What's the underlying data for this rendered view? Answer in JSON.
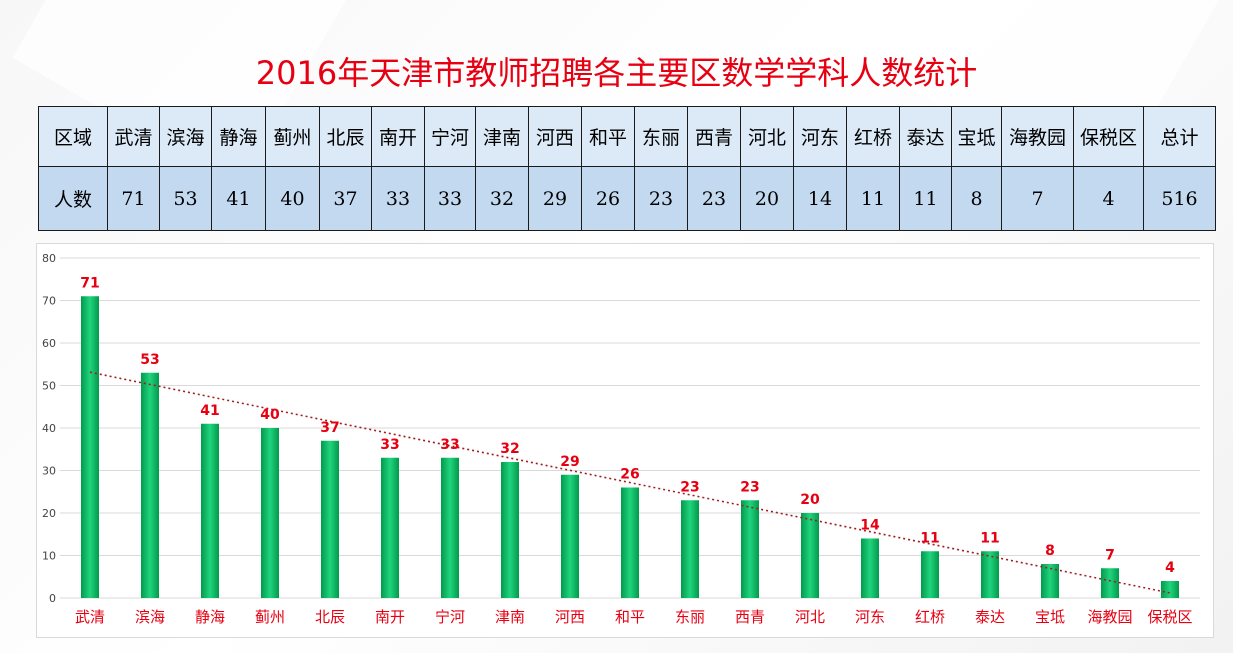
{
  "title": "2016年天津市教师招聘各主要区数学学科人数统计",
  "table": {
    "row_label_region": "区域",
    "row_label_count": "人数",
    "regions": [
      "武清",
      "滨海",
      "静海",
      "蓟州",
      "北辰",
      "南开",
      "宁河",
      "津南",
      "河西",
      "和平",
      "东丽",
      "西青",
      "河北",
      "河东",
      "红桥",
      "泰达",
      "宝坻",
      "海教园",
      "保税区"
    ],
    "counts": [
      "71",
      "53",
      "41",
      "40",
      "37",
      "33",
      "33",
      "32",
      "29",
      "26",
      "23",
      "23",
      "20",
      "14",
      "11",
      "11",
      "8",
      "7",
      "4"
    ],
    "total_label": "总计",
    "total_value": "516"
  },
  "chart_data": {
    "type": "bar",
    "categories": [
      "武清",
      "滨海",
      "静海",
      "蓟州",
      "北辰",
      "南开",
      "宁河",
      "津南",
      "河西",
      "和平",
      "东丽",
      "西青",
      "河北",
      "河东",
      "红桥",
      "泰达",
      "宝坻",
      "海教园",
      "保税区"
    ],
    "values": [
      71,
      53,
      41,
      40,
      37,
      33,
      33,
      32,
      29,
      26,
      23,
      23,
      20,
      14,
      11,
      11,
      8,
      7,
      4
    ],
    "ylim": [
      0,
      80
    ],
    "yticks": [
      0,
      10,
      20,
      30,
      40,
      50,
      60,
      70,
      80
    ],
    "grid": true,
    "trendline": "linear",
    "colors": {
      "bar_top": "#00a651",
      "bar_mid": "#1fd07a",
      "label": "#e60012",
      "trend": "#a11e1e",
      "grid": "#d9d9d9"
    }
  }
}
